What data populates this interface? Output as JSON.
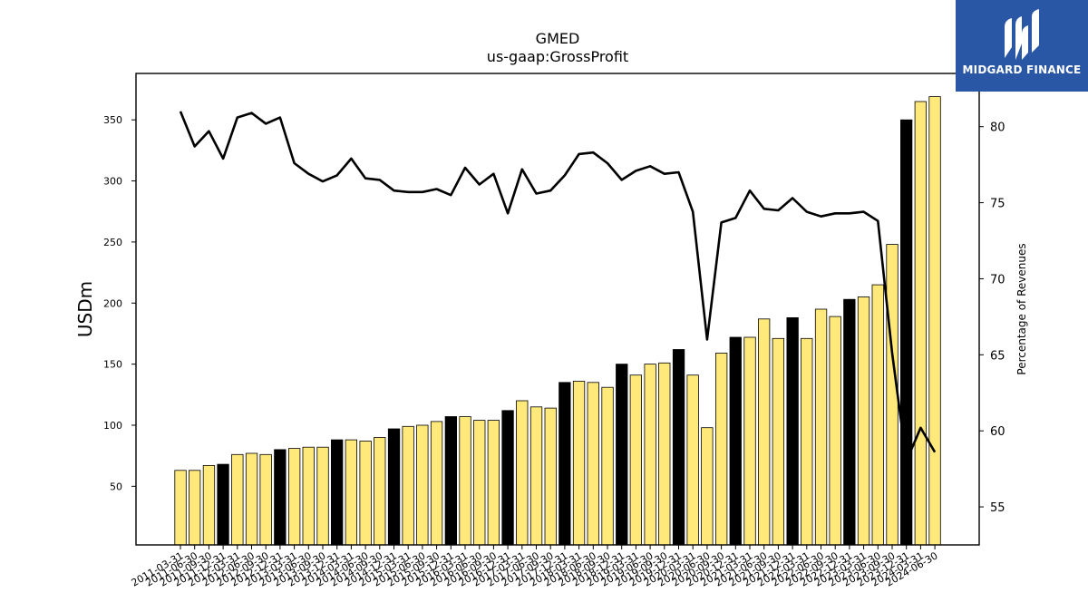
{
  "chart_data": {
    "type": "bar",
    "title": "GMED",
    "subtitle": "us-gaap:GrossProfit",
    "ylabel": "USDm",
    "y2label": "Percentage of Revenues",
    "ylim": [
      2,
      388
    ],
    "y2lim": [
      52.5,
      83.5
    ],
    "yticks": [
      50,
      100,
      150,
      200,
      250,
      300,
      350
    ],
    "y2ticks": [
      55,
      60,
      65,
      70,
      75,
      80
    ],
    "colors": {
      "bar": "#ffe97a",
      "bar_q4": "#000000",
      "line": "#000000"
    },
    "categories": [
      "2011-03-31",
      "2011-06-30",
      "2011-09-30",
      "2011-12-31",
      "2012-03-31",
      "2012-06-30",
      "2012-09-30",
      "2012-12-31",
      "2013-03-31",
      "2013-06-30",
      "2013-09-30",
      "2013-12-31",
      "2014-03-31",
      "2014-06-30",
      "2014-09-30",
      "2014-12-31",
      "2015-03-31",
      "2015-06-30",
      "2015-09-30",
      "2015-12-31",
      "2016-03-31",
      "2016-06-30",
      "2016-09-30",
      "2016-12-31",
      "2017-03-31",
      "2017-06-30",
      "2017-09-30",
      "2017-12-31",
      "2018-03-31",
      "2018-06-30",
      "2018-09-30",
      "2018-12-31",
      "2019-03-31",
      "2019-06-30",
      "2019-09-30",
      "2019-12-31",
      "2020-03-31",
      "2020-06-30",
      "2020-09-30",
      "2020-12-31",
      "2021-03-31",
      "2021-06-30",
      "2021-09-30",
      "2021-12-31",
      "2022-03-31",
      "2022-06-30",
      "2022-09-30",
      "2022-12-31",
      "2023-03-31",
      "2023-06-30",
      "2023-09-30",
      "2023-12-31",
      "2024-03-31",
      "2024-06-30"
    ],
    "series": [
      {
        "kind": "bar",
        "values": [
          63,
          63,
          67,
          68,
          76,
          77,
          76,
          80,
          81,
          82,
          82,
          88,
          88,
          87,
          90,
          97,
          99,
          100,
          103,
          107,
          107,
          104,
          104,
          112,
          120,
          115,
          114,
          135,
          136,
          135,
          131,
          150,
          141,
          150,
          151,
          162,
          141,
          98,
          159,
          172,
          172,
          187,
          171,
          188,
          171,
          195,
          189,
          203,
          205,
          215,
          248,
          350,
          365,
          369
        ]
      },
      {
        "kind": "line",
        "axis": "right",
        "values": [
          81.0,
          78.7,
          79.7,
          77.9,
          80.6,
          80.9,
          80.2,
          80.6,
          77.6,
          76.9,
          76.4,
          76.8,
          77.9,
          76.6,
          76.5,
          75.8,
          75.7,
          75.7,
          75.9,
          75.5,
          77.3,
          76.2,
          76.9,
          74.3,
          77.2,
          75.6,
          75.8,
          76.8,
          78.2,
          78.3,
          77.6,
          76.5,
          77.1,
          77.4,
          76.9,
          77.0,
          74.4,
          66.0,
          73.7,
          74.0,
          75.8,
          74.6,
          74.5,
          75.3,
          74.4,
          74.1,
          74.3,
          74.3,
          74.4,
          73.8,
          65.1,
          58.0,
          60.2,
          58.6
        ]
      }
    ]
  },
  "logo": {
    "name": "MIDGARD FINANCE"
  }
}
